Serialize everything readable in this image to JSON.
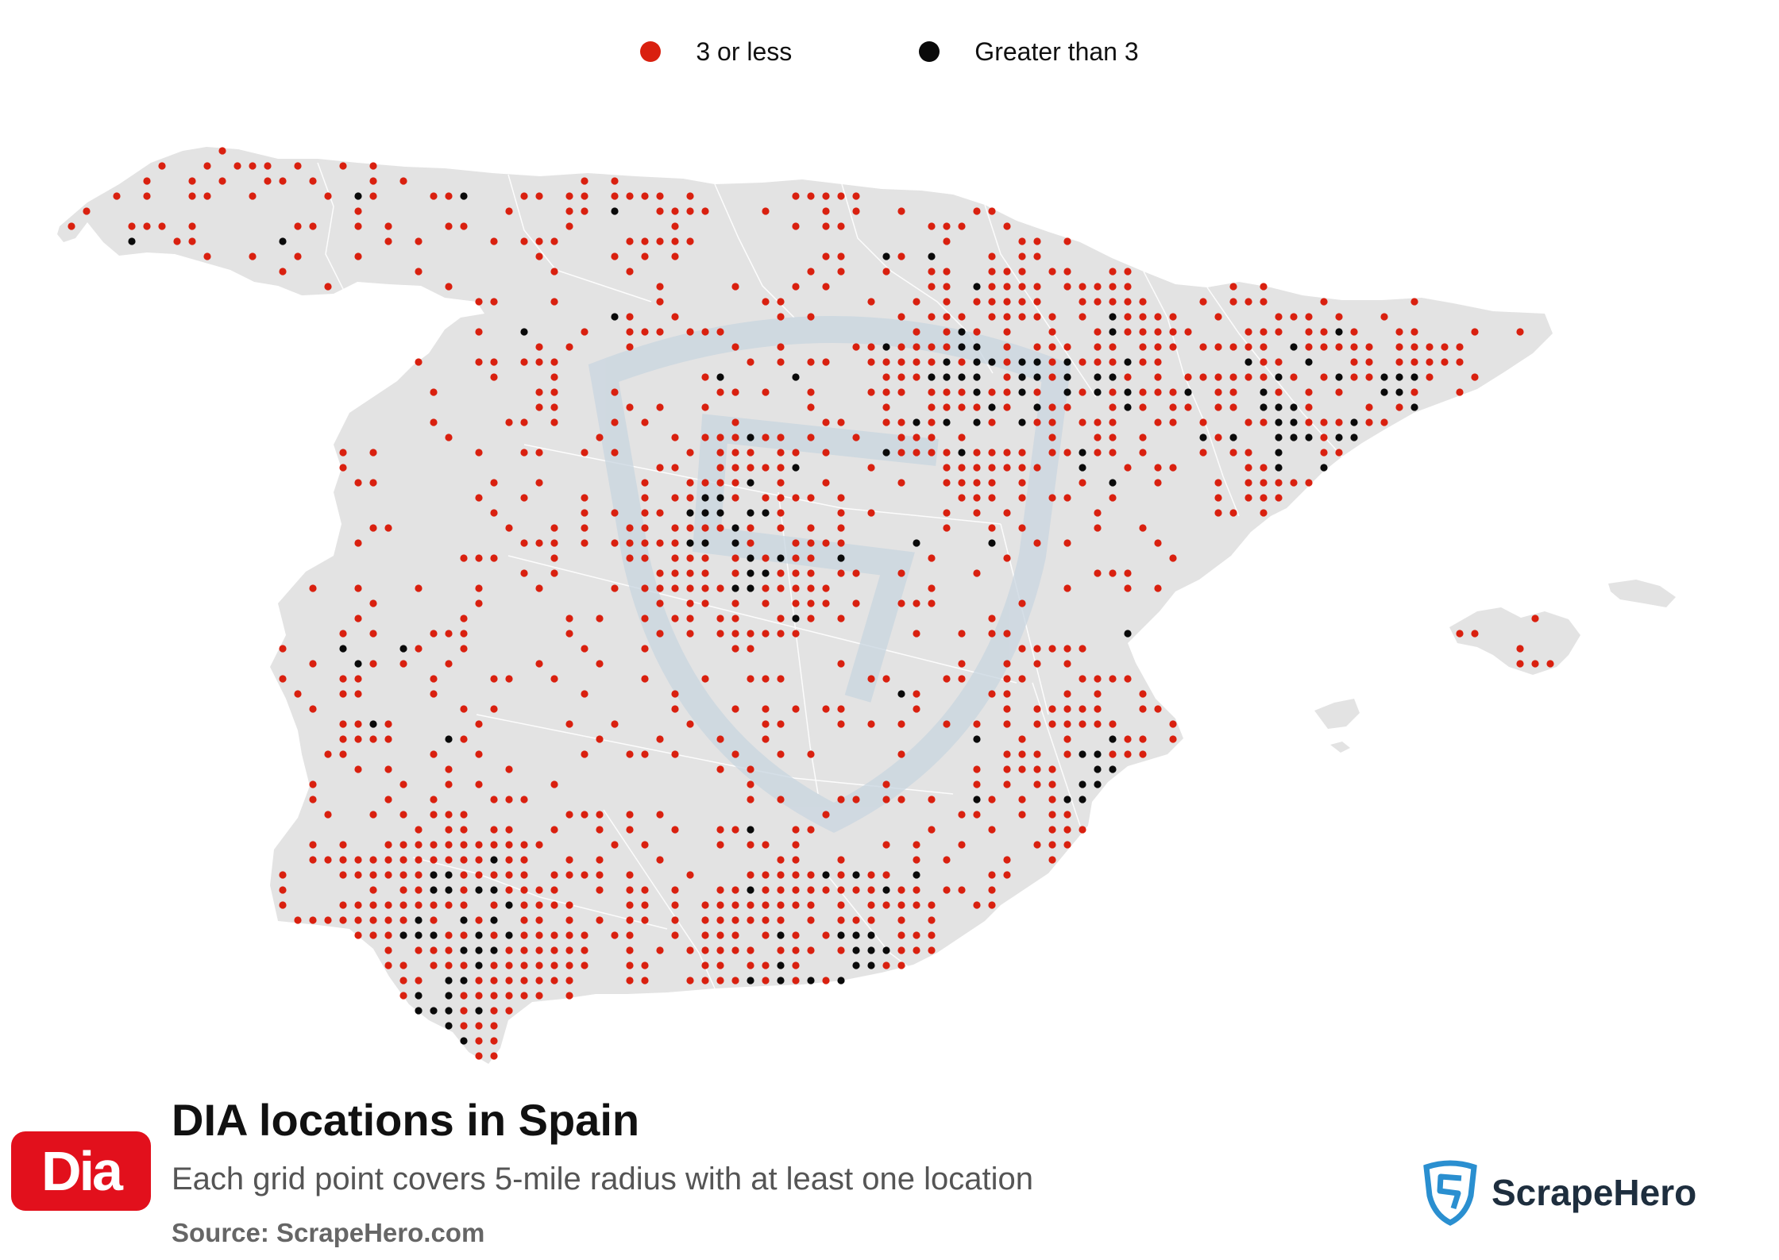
{
  "legend": {
    "items": [
      {
        "label": "3 or less",
        "color": "#d9200f"
      },
      {
        "label": "Greater than 3",
        "color": "#0a0a0a"
      }
    ]
  },
  "colors": {
    "land": "#e3e3e3",
    "border": "#ffffff",
    "watermark": "#c9d6e0",
    "brand_red": "#e2101c",
    "brand_text": "#1e2e3e"
  },
  "logo": {
    "text": "Dia"
  },
  "title": "DIA locations in Spain",
  "subtitle": "Each grid point covers 5-mile radius with at least one location",
  "source": "Source: ScrapeHero.com",
  "brand": {
    "name": "ScrapeHero",
    "icon": "shield-s-icon"
  },
  "map": {
    "country": "Spain",
    "watermark_icon": "shield-s-icon"
  }
}
